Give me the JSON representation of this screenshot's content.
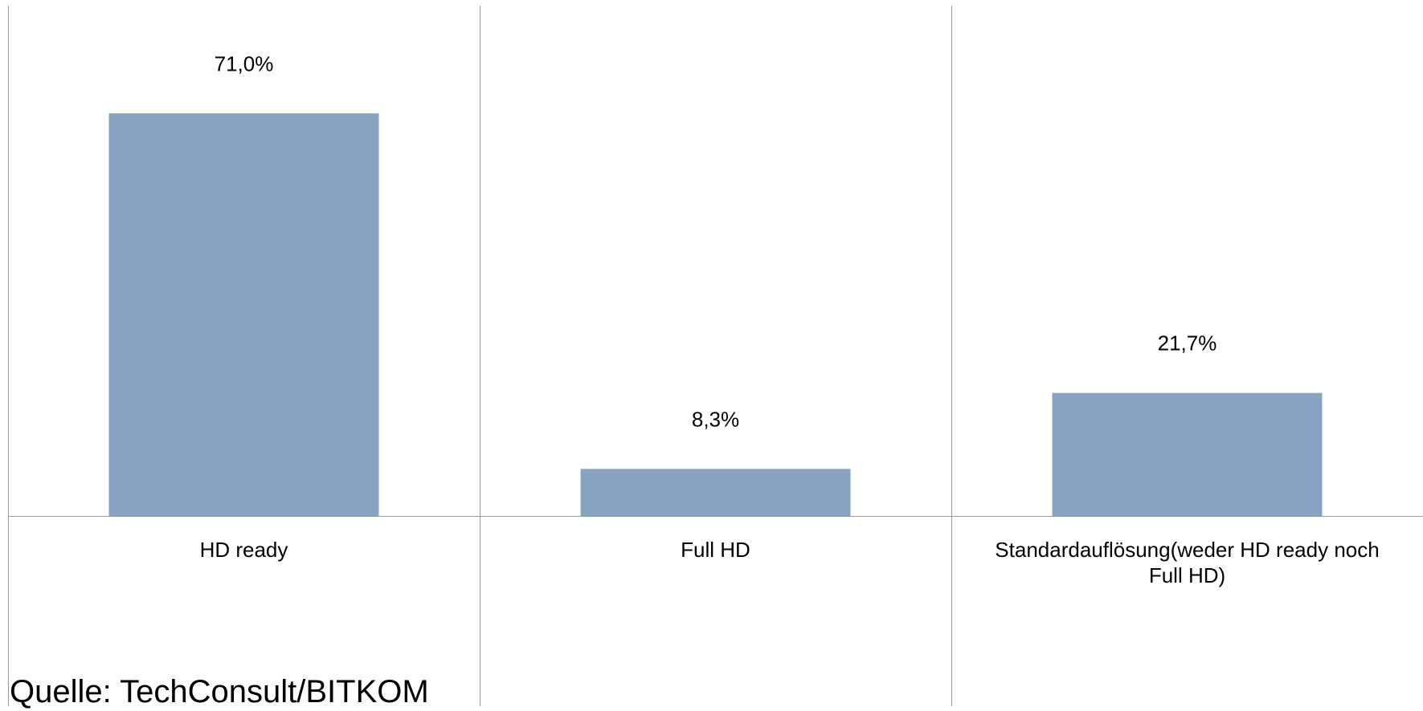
{
  "chart_data": {
    "type": "bar",
    "categories": [
      "HD ready",
      "Full HD",
      "Standardauflösung(weder HD ready noch Full HD)"
    ],
    "category_lines": [
      [
        "HD ready"
      ],
      [
        "Full HD"
      ],
      [
        "Standardauflösung(weder HD ready noch",
        "Full HD)"
      ]
    ],
    "values": [
      71.0,
      8.3,
      21.7
    ],
    "data_labels": [
      "71,0%",
      "8,3%",
      "21,7%"
    ],
    "ylim": [
      0,
      90
    ],
    "grid": false,
    "legend": "none",
    "bar_color": "#87a3c1",
    "axis_color": "#999999",
    "title": "",
    "xlabel": "",
    "ylabel": ""
  },
  "source": "Quelle: TechConsult/BITKOM"
}
